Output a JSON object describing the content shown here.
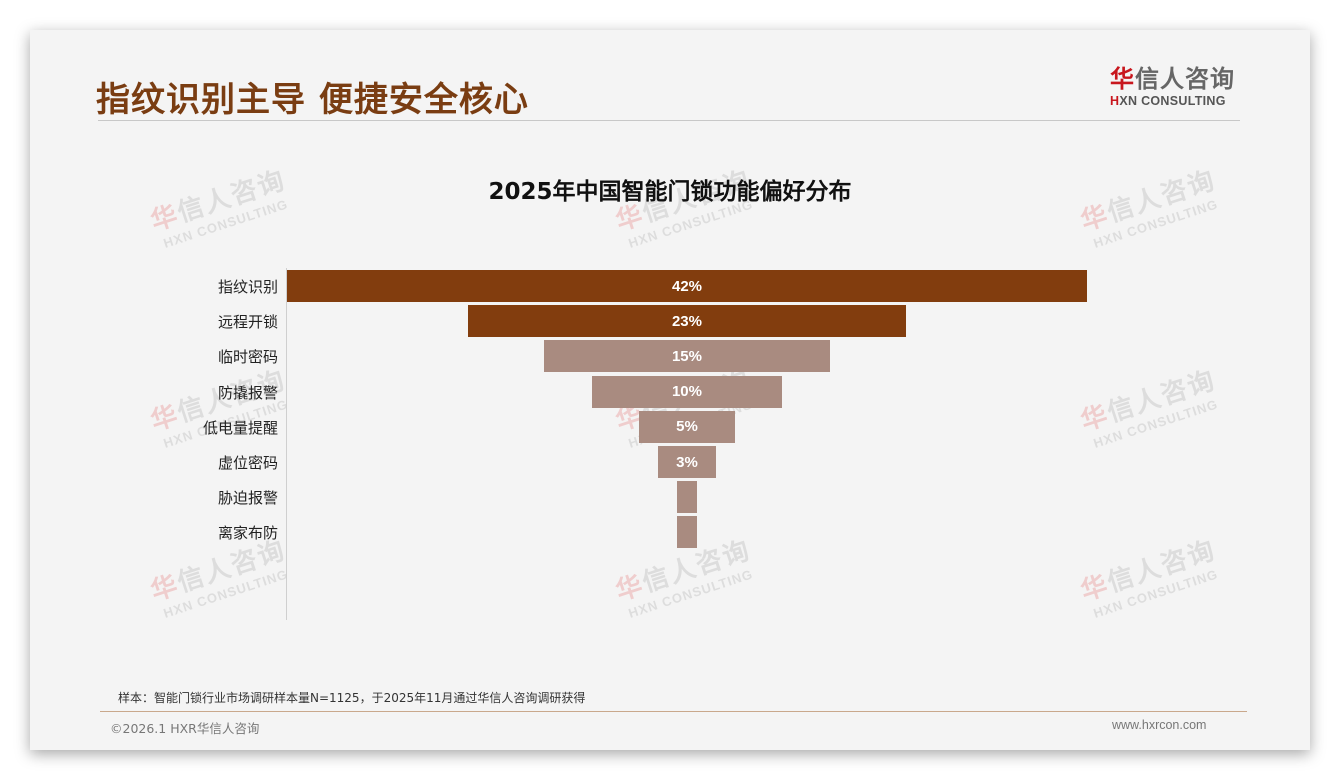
{
  "header": {
    "title": "指纹识别主导 便捷安全核心",
    "logo": {
      "cn_first": "华",
      "cn_rest": "信人咨询",
      "en_first": "H",
      "en_rest": "XN CONSULTING"
    }
  },
  "watermark": {
    "cn_first": "华",
    "cn_rest": "信人咨询",
    "en": "HXN CONSULTING"
  },
  "chart_data": {
    "type": "bar",
    "orientation": "horizontal-funnel",
    "title": "2025年中国智能门锁功能偏好分布",
    "categories": [
      "指纹识别",
      "远程开锁",
      "临时密码",
      "防撬报警",
      "低电量提醒",
      "虚位密码",
      "胁迫报警",
      "离家布防"
    ],
    "values": [
      42,
      23,
      15,
      10,
      5,
      3,
      1,
      1
    ],
    "labels": [
      "42%",
      "23%",
      "15%",
      "10%",
      "5%",
      "3%",
      "",
      ""
    ],
    "unit": "%",
    "colors": [
      "#823d0e",
      "#823d0e",
      "#a98b80",
      "#a98b80",
      "#a98b80",
      "#a98b80",
      "#a98b80",
      "#a98b80"
    ],
    "xlabel": "",
    "ylabel": "",
    "grid": false,
    "legend": null
  },
  "footer": {
    "note": "样本：智能门锁行业市场调研样本量N=1125，于2025年11月通过华信人咨询调研获得",
    "copyright": "©2026.1 HXR华信人咨询",
    "website": "www.hxrcon.com"
  }
}
